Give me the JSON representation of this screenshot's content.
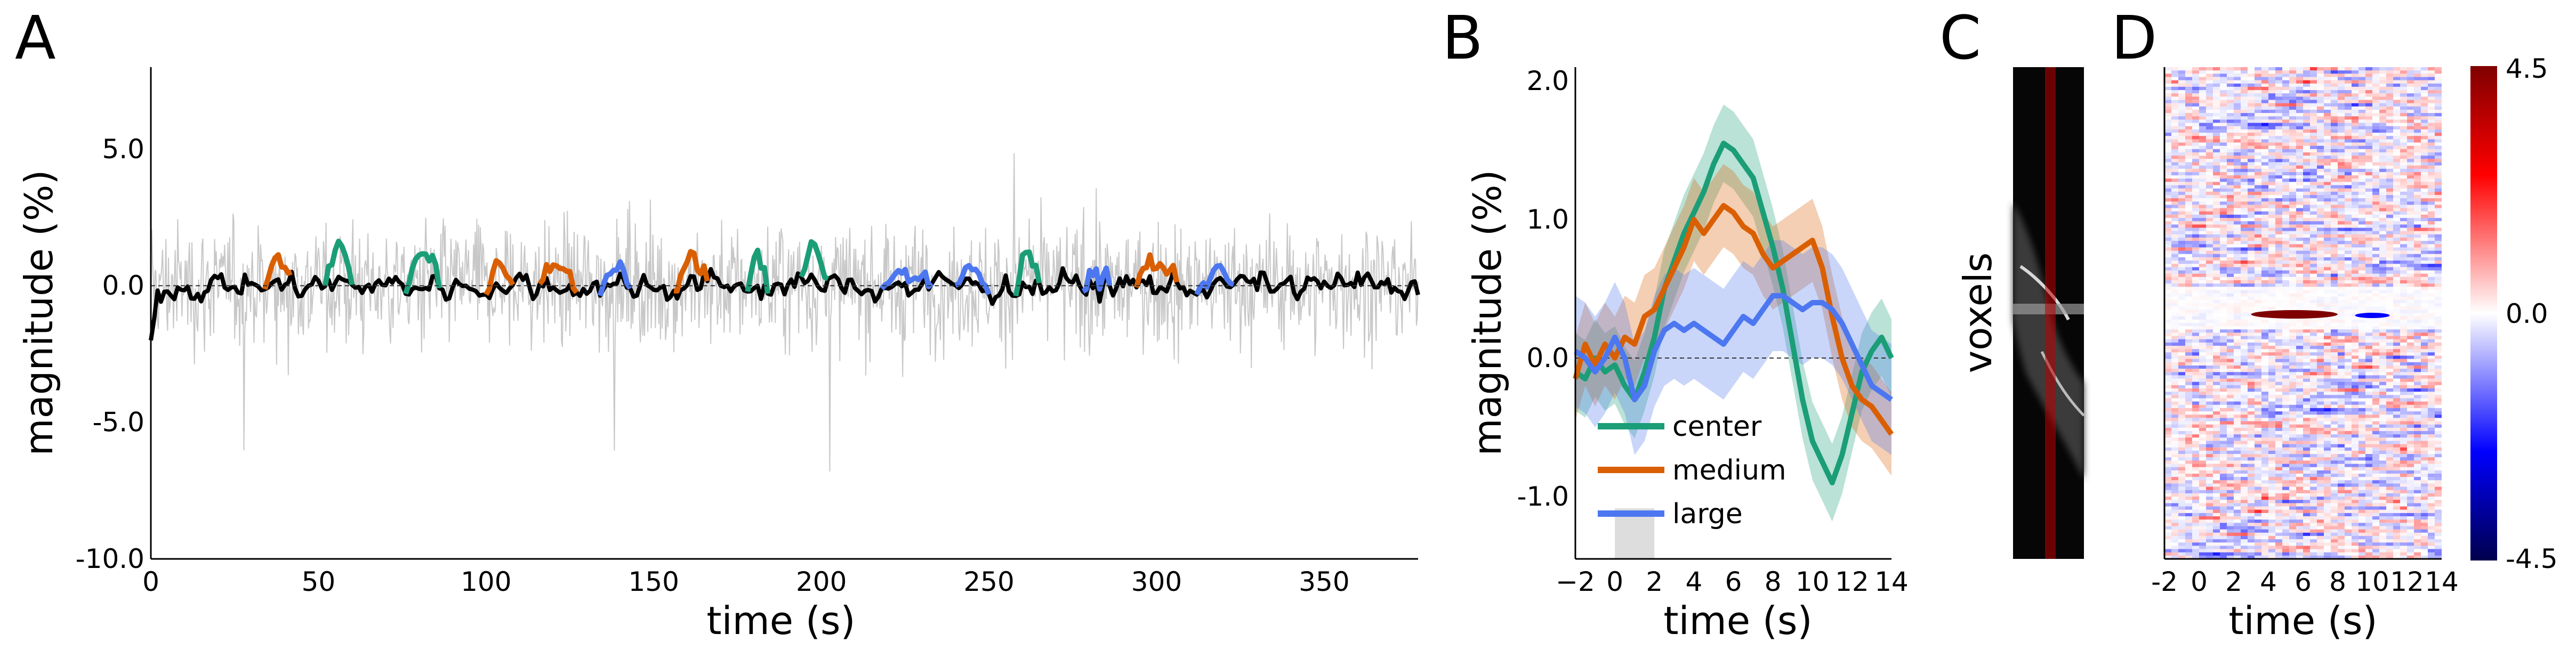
{
  "chart_data": [
    {
      "panel": "A",
      "type": "line",
      "xlabel": "time (s)",
      "ylabel": "magnitude (%)",
      "xlim": [
        0,
        378
      ],
      "ylim": [
        -10,
        8
      ],
      "xticks": [
        0,
        50,
        100,
        150,
        200,
        250,
        300,
        350
      ],
      "yticks": [
        -10.0,
        -5.0,
        0.0,
        5.0
      ],
      "ytick_labels": [
        "-10.0",
        "-5.0",
        "0.0",
        "5.0"
      ],
      "zero_line": "dashed",
      "grid": false,
      "colors": {
        "raw": "#c8c8c8",
        "baseline": "#000000",
        "center": "#1b9e77",
        "medium": "#d95f02",
        "large": "#4c77f0"
      },
      "segments": [
        {
          "condition": "center",
          "x": [
            52,
            60
          ]
        },
        {
          "condition": "center",
          "x": [
            76,
            86
          ]
        },
        {
          "condition": "center",
          "x": [
            178,
            184
          ]
        },
        {
          "condition": "center",
          "x": [
            194,
            202
          ]
        },
        {
          "condition": "center",
          "x": [
            258,
            265
          ]
        },
        {
          "condition": "medium",
          "x": [
            34,
            42
          ]
        },
        {
          "condition": "medium",
          "x": [
            100,
            108
          ]
        },
        {
          "condition": "medium",
          "x": [
            116,
            127
          ]
        },
        {
          "condition": "medium",
          "x": [
            156,
            166
          ]
        },
        {
          "condition": "medium",
          "x": [
            294,
            306
          ]
        },
        {
          "condition": "large",
          "x": [
            134,
            143
          ]
        },
        {
          "condition": "large",
          "x": [
            218,
            233
          ]
        },
        {
          "condition": "large",
          "x": [
            240,
            250
          ]
        },
        {
          "condition": "large",
          "x": [
            278,
            286
          ]
        },
        {
          "condition": "large",
          "x": [
            312,
            323
          ]
        }
      ]
    },
    {
      "panel": "B",
      "type": "line",
      "xlabel": "time (s)",
      "ylabel": "magnitude (%)",
      "xlim": [
        -2,
        14
      ],
      "ylim": [
        -1.45,
        2.1
      ],
      "xticks": [
        -2,
        0,
        2,
        4,
        6,
        8,
        10,
        12,
        14
      ],
      "yticks": [
        -1.0,
        0.0,
        1.0,
        2.0
      ],
      "ytick_labels": [
        "-1.0",
        "0.0",
        "1.0",
        "2.0"
      ],
      "stimulus_window": [
        0,
        2
      ],
      "zero_line": "dashed",
      "legend": "lower-left",
      "x": [
        -2,
        -1.5,
        -1,
        -0.5,
        0,
        0.5,
        1,
        1.5,
        2,
        2.5,
        3,
        3.5,
        4,
        4.5,
        5,
        5.5,
        6,
        6.5,
        7,
        7.5,
        8,
        8.5,
        9,
        9.5,
        10,
        10.5,
        11,
        11.5,
        12,
        12.5,
        13,
        13.5,
        14
      ],
      "series": [
        {
          "name": "center",
          "color": "#1b9e77",
          "values": [
            -0.1,
            -0.15,
            0.0,
            -0.1,
            -0.05,
            -0.2,
            -0.3,
            -0.1,
            0.15,
            0.5,
            0.7,
            0.9,
            1.05,
            1.2,
            1.4,
            1.55,
            1.5,
            1.4,
            1.3,
            1.05,
            0.8,
            0.5,
            0.1,
            -0.3,
            -0.6,
            -0.75,
            -0.9,
            -0.7,
            -0.4,
            -0.1,
            0.05,
            0.15,
            0.0
          ],
          "error": 0.28
        },
        {
          "name": "medium",
          "color": "#d95f02",
          "values": [
            -0.15,
            0.1,
            -0.05,
            0.1,
            0.0,
            0.15,
            0.1,
            0.3,
            0.35,
            0.5,
            0.65,
            0.8,
            1.0,
            0.9,
            1.0,
            1.1,
            1.05,
            0.95,
            0.9,
            0.75,
            0.65,
            0.7,
            0.75,
            0.8,
            0.85,
            0.65,
            0.3,
            0.0,
            -0.2,
            -0.3,
            -0.35,
            -0.45,
            -0.55
          ],
          "error": 0.3
        },
        {
          "name": "large",
          "color": "#4c77f0",
          "values": [
            0.05,
            0.0,
            -0.1,
            0.0,
            0.15,
            0.0,
            -0.3,
            -0.2,
            0.05,
            0.2,
            0.25,
            0.2,
            0.25,
            0.2,
            0.15,
            0.1,
            0.2,
            0.3,
            0.25,
            0.35,
            0.45,
            0.45,
            0.4,
            0.35,
            0.4,
            0.4,
            0.35,
            0.25,
            0.1,
            -0.05,
            -0.2,
            -0.25,
            -0.3
          ],
          "error": 0.4
        }
      ]
    },
    {
      "panel": "C",
      "type": "image",
      "ylabel": "voxels"
    },
    {
      "panel": "D",
      "type": "heatmap",
      "xlabel": "time (s)",
      "xlim": [
        -2,
        14
      ],
      "xticks": [
        -2,
        0,
        2,
        4,
        6,
        8,
        10,
        12,
        14
      ],
      "colorbar": {
        "min": -4.5,
        "max": 4.5,
        "ticks": [
          "4.5",
          "0.0",
          "-4.5"
        ],
        "colormap": "seismic",
        "min_color": "#00004c",
        "max_color": "#7f0000"
      },
      "features": [
        {
          "label": "noise",
          "value_range": [
            -4.5,
            4.5
          ]
        },
        {
          "label": "strong positive band",
          "time": [
            3,
            8
          ],
          "value": 4.5
        },
        {
          "label": "weak negative band",
          "time": [
            9,
            11
          ],
          "value": -2.5
        }
      ]
    }
  ],
  "panel_labels": [
    "A",
    "B",
    "C",
    "D"
  ]
}
